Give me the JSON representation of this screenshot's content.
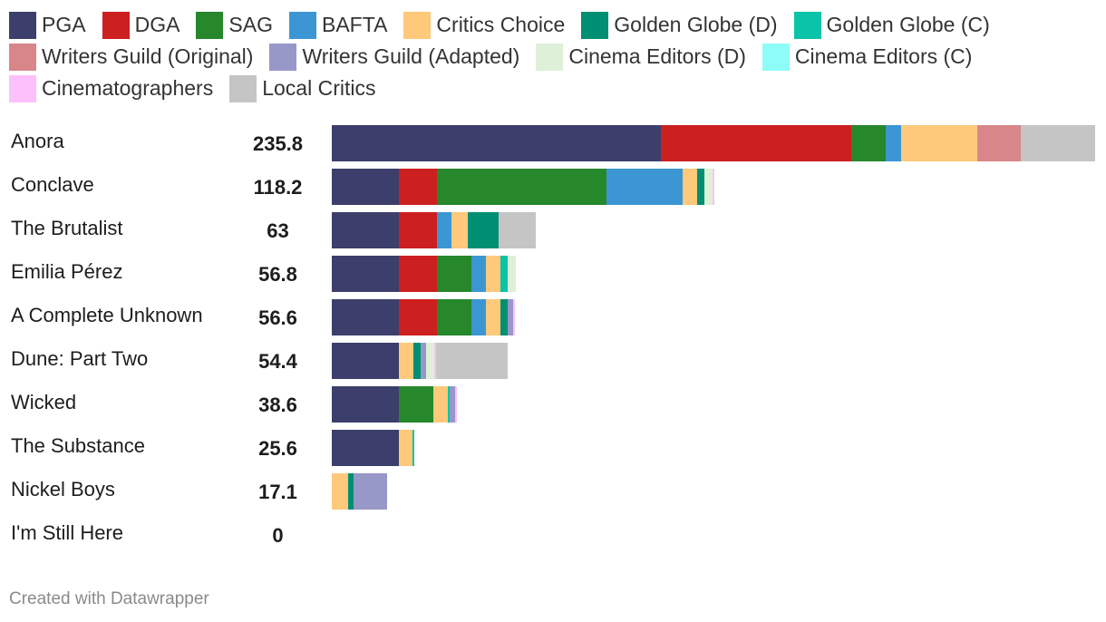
{
  "chart_data": {
    "type": "bar",
    "orientation": "horizontal",
    "stacked": true,
    "title": "",
    "xlabel": "",
    "ylabel": "",
    "legend": "top",
    "series": [
      {
        "name": "PGA",
        "color": "#3c3f6b"
      },
      {
        "name": "DGA",
        "color": "#cc1f20"
      },
      {
        "name": "SAG",
        "color": "#26872b"
      },
      {
        "name": "BAFTA",
        "color": "#3d96d4"
      },
      {
        "name": "Critics Choice",
        "color": "#fec97a"
      },
      {
        "name": "Golden Globe (D)",
        "color": "#008f72"
      },
      {
        "name": "Golden Globe (C)",
        "color": "#0bc3a8"
      },
      {
        "name": "Writers Guild (Original)",
        "color": "#d8868a"
      },
      {
        "name": "Writers Guild (Adapted)",
        "color": "#9797c8"
      },
      {
        "name": "Cinema Editors (D)",
        "color": "#def0d8"
      },
      {
        "name": "Cinema Editors (C)",
        "color": "#8efcf7"
      },
      {
        "name": "Cinematographers",
        "color": "#fcc1fa"
      },
      {
        "name": "Local Critics",
        "color": "#c5c5c5"
      }
    ],
    "rows": [
      {
        "label": "Anora",
        "total": "235.8",
        "values": {
          "PGA": 101.6,
          "DGA": 58.8,
          "SAG": 10.6,
          "BAFTA": 5.0,
          "Critics Choice": 23.5,
          "Writers Guild (Original)": 13.4,
          "Local Critics": 22.9
        }
      },
      {
        "label": "Conclave",
        "total": "118.2",
        "values": {
          "PGA": 20.7,
          "DGA": 11.7,
          "SAG": 52.5,
          "BAFTA": 23.5,
          "Critics Choice": 4.5,
          "Golden Globe (D)": 2.2,
          "Cinema Editors (D)": 2.5,
          "Cinematographers": 0.6
        }
      },
      {
        "label": "The Brutalist",
        "total": "63",
        "values": {
          "PGA": 20.7,
          "DGA": 11.7,
          "BAFTA": 4.5,
          "Critics Choice": 5.0,
          "Golden Globe (D)": 9.5,
          "Local Critics": 11.6
        }
      },
      {
        "label": "Emilia Pérez",
        "total": "56.8",
        "values": {
          "PGA": 20.7,
          "DGA": 11.7,
          "SAG": 10.6,
          "BAFTA": 4.5,
          "Critics Choice": 4.5,
          "Golden Globe (C)": 2.2,
          "Cinema Editors (D)": 2.6
        }
      },
      {
        "label": "A Complete Unknown",
        "total": "56.6",
        "values": {
          "PGA": 20.7,
          "DGA": 11.7,
          "SAG": 10.6,
          "BAFTA": 4.5,
          "Critics Choice": 4.5,
          "Golden Globe (D)": 2.2,
          "Writers Guild (Adapted)": 1.8,
          "Cinematographers": 0.6
        }
      },
      {
        "label": "Dune: Part Two",
        "total": "54.4",
        "values": {
          "PGA": 20.7,
          "Critics Choice": 4.5,
          "Golden Globe (D)": 2.2,
          "Writers Guild (Adapted)": 1.7,
          "Cinema Editors (D)": 2.5,
          "Cinematographers": 0.6,
          "Local Critics": 22.2
        }
      },
      {
        "label": "Wicked",
        "total": "38.6",
        "values": {
          "PGA": 20.7,
          "SAG": 10.6,
          "Critics Choice": 4.5,
          "Golden Globe (C)": 0.6,
          "Writers Guild (Adapted)": 1.6,
          "Cinematographers": 0.6
        }
      },
      {
        "label": "The Substance",
        "total": "25.6",
        "values": {
          "PGA": 20.7,
          "Critics Choice": 4.3,
          "Golden Globe (C)": 0.6
        }
      },
      {
        "label": "Nickel Boys",
        "total": "17.1",
        "values": {
          "Critics Choice": 5.0,
          "Golden Globe (D)": 1.7,
          "Writers Guild (Adapted)": 10.4
        }
      },
      {
        "label": "I'm Still Here",
        "total": "0",
        "values": {}
      }
    ],
    "xlim": [
      0,
      235.8
    ]
  },
  "credit": "Created with Datawrapper"
}
